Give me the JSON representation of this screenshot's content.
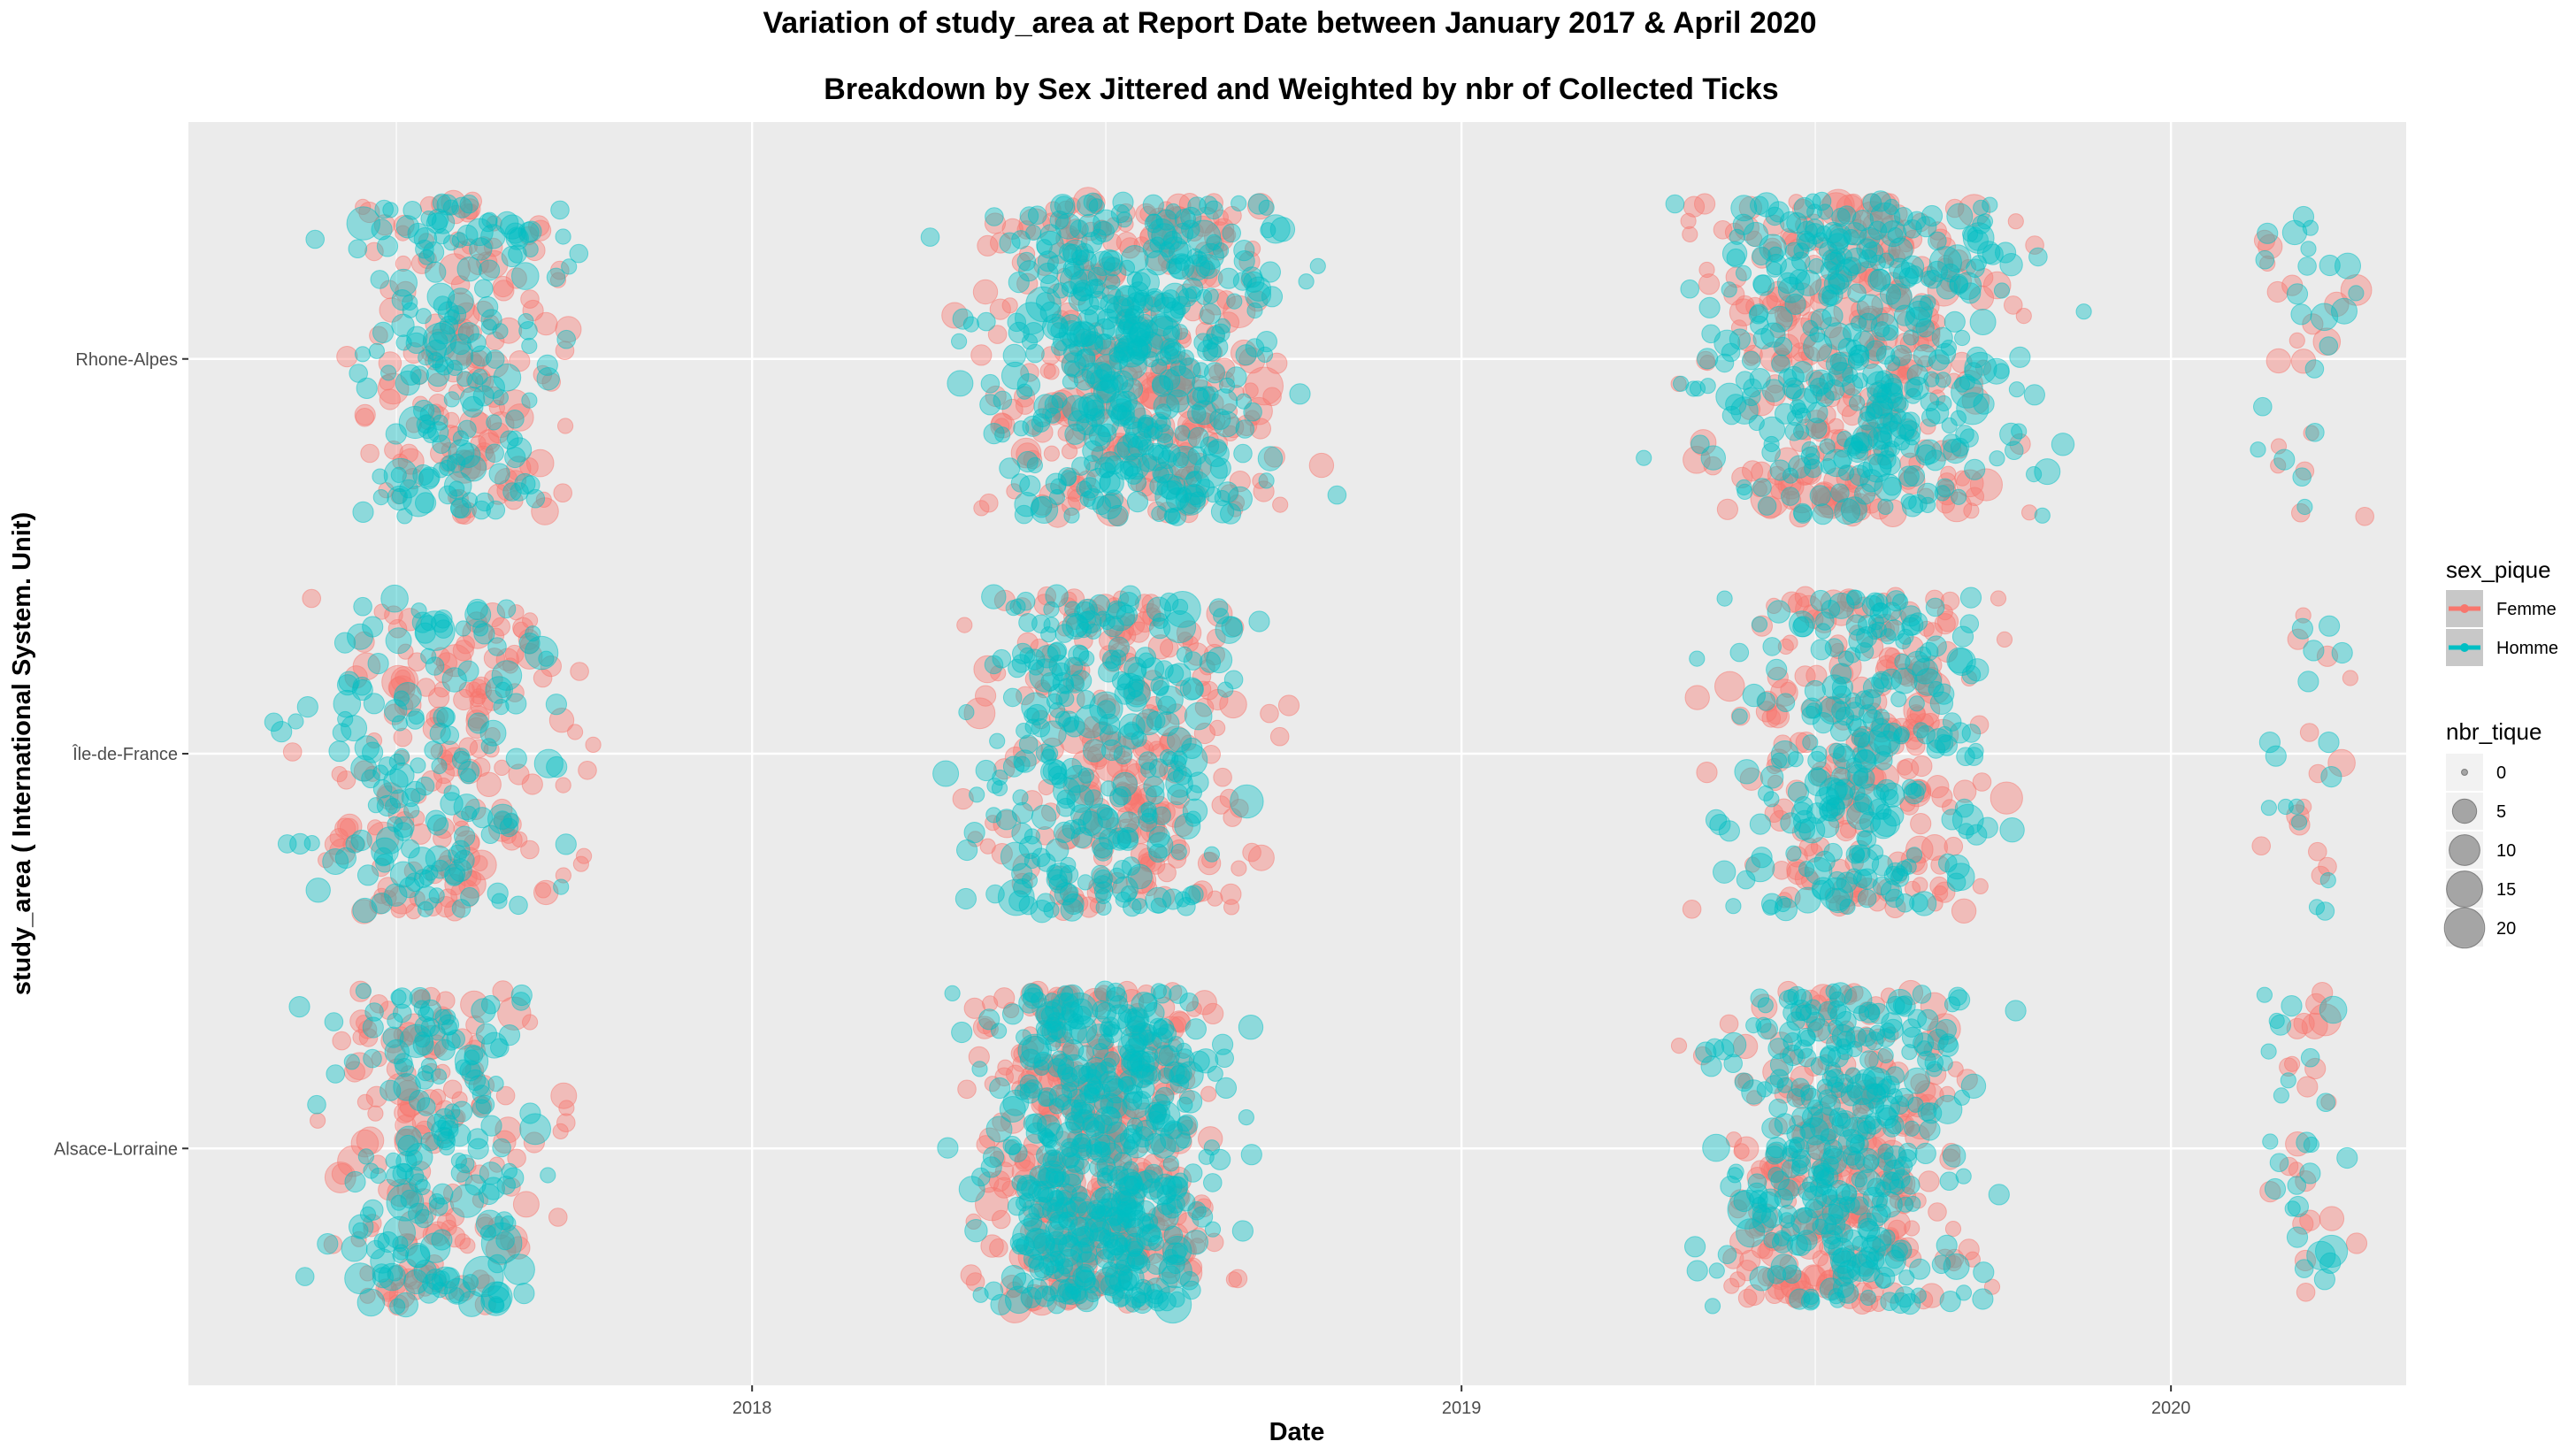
{
  "chart_data": {
    "type": "scatter",
    "title": "Variation of  study_area  at Report Date between January 2017 & April 2020",
    "subtitle": "Breakdown by Sex Jittered and Weighted by nbr of Collected Ticks",
    "xlabel": "Date",
    "ylabel": "study_area ( International System. Unit)",
    "x_ticks": [
      "2018",
      "2019",
      "2020"
    ],
    "xlim": [
      "2017-03-17",
      "2020-05-01"
    ],
    "categories": [
      "Alsace-Lorraine",
      "Île-de-France",
      "Rhone-Alpes"
    ],
    "grid": true,
    "legend_position": "right",
    "legend_color_title": "sex_pique",
    "legend_size_title": "nbr_tique",
    "size_breaks": [
      0,
      5,
      10,
      15,
      20
    ],
    "point_alpha": 0.4,
    "jitter_y": 0.4,
    "series": [
      {
        "name": "Femme",
        "color": "#F8766D",
        "clusters": [
          {
            "category": "Alsace-Lorraine",
            "start": "2017-04-20",
            "end": "2017-10-20",
            "n": 150
          },
          {
            "category": "Alsace-Lorraine",
            "start": "2018-03-25",
            "end": "2018-09-30",
            "n": 420
          },
          {
            "category": "Alsace-Lorraine",
            "start": "2019-04-01",
            "end": "2019-10-25",
            "n": 280
          },
          {
            "category": "Alsace-Lorraine",
            "start": "2020-02-10",
            "end": "2020-04-15",
            "n": 22
          },
          {
            "category": "Île-de-France",
            "start": "2017-04-01",
            "end": "2017-11-20",
            "n": 160
          },
          {
            "category": "Île-de-France",
            "start": "2018-03-20",
            "end": "2018-10-25",
            "n": 230
          },
          {
            "category": "Île-de-France",
            "start": "2019-04-10",
            "end": "2019-11-05",
            "n": 200
          },
          {
            "category": "Île-de-France",
            "start": "2020-02-05",
            "end": "2020-04-20",
            "n": 14
          },
          {
            "category": "Rhone-Alpes",
            "start": "2017-05-10",
            "end": "2017-10-25",
            "n": 140
          },
          {
            "category": "Rhone-Alpes",
            "start": "2018-03-20",
            "end": "2018-11-20",
            "n": 320
          },
          {
            "category": "Rhone-Alpes",
            "start": "2019-03-10",
            "end": "2019-12-05",
            "n": 300
          },
          {
            "category": "Rhone-Alpes",
            "start": "2020-01-20",
            "end": "2020-04-25",
            "n": 18
          }
        ]
      },
      {
        "name": "Homme",
        "color": "#00BFC4",
        "clusters": [
          {
            "category": "Alsace-Lorraine",
            "start": "2017-04-20",
            "end": "2017-10-20",
            "n": 170
          },
          {
            "category": "Alsace-Lorraine",
            "start": "2018-03-25",
            "end": "2018-10-05",
            "n": 480
          },
          {
            "category": "Alsace-Lorraine",
            "start": "2019-04-01",
            "end": "2019-11-01",
            "n": 330
          },
          {
            "category": "Alsace-Lorraine",
            "start": "2020-02-01",
            "end": "2020-04-20",
            "n": 26
          },
          {
            "category": "Île-de-France",
            "start": "2017-04-01",
            "end": "2017-11-10",
            "n": 150
          },
          {
            "category": "Île-de-France",
            "start": "2018-03-15",
            "end": "2018-10-15",
            "n": 270
          },
          {
            "category": "Île-de-France",
            "start": "2019-04-05",
            "end": "2019-11-10",
            "n": 240
          },
          {
            "category": "Île-de-France",
            "start": "2020-02-05",
            "end": "2020-04-20",
            "n": 16
          },
          {
            "category": "Rhone-Alpes",
            "start": "2017-05-10",
            "end": "2017-10-25",
            "n": 170
          },
          {
            "category": "Rhone-Alpes",
            "start": "2018-03-15",
            "end": "2018-11-15",
            "n": 420
          },
          {
            "category": "Rhone-Alpes",
            "start": "2019-03-10",
            "end": "2019-12-10",
            "n": 360
          },
          {
            "category": "Rhone-Alpes",
            "start": "2020-01-20",
            "end": "2020-04-25",
            "n": 22
          }
        ]
      }
    ]
  }
}
